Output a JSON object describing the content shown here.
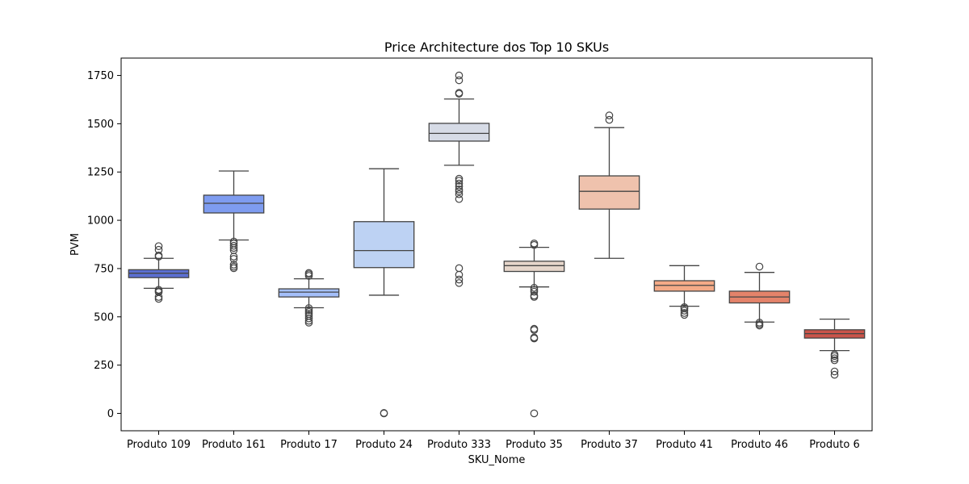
{
  "chart_data": {
    "type": "box",
    "title": "Price Architecture dos Top 10 SKUs",
    "xlabel": "SKU_Nome",
    "ylabel": "PVM",
    "ylim": [
      -90,
      1840
    ],
    "yticks": [
      0,
      250,
      500,
      750,
      1000,
      1250,
      1500,
      1750
    ],
    "grid": false,
    "categories": [
      "Produto 109",
      "Produto 161",
      "Produto 17",
      "Produto 24",
      "Produto 333",
      "Produto 35",
      "Produto 37",
      "Produto 41",
      "Produto 46",
      "Produto 6"
    ],
    "boxes": [
      {
        "category": "Produto 109",
        "color": "#5b6fd1",
        "whisker_low": 648,
        "q1": 703,
        "median": 726,
        "q3": 744,
        "whisker_high": 803,
        "outliers": [
          593,
          603,
          628,
          633,
          640,
          812,
          818,
          847,
          866
        ]
      },
      {
        "category": "Produto 161",
        "color": "#7e9cf0",
        "whisker_low": 898,
        "q1": 1038,
        "median": 1088,
        "q3": 1130,
        "whisker_high": 1255,
        "outliers": [
          752,
          760,
          770,
          800,
          812,
          845,
          857,
          868,
          880,
          890
        ]
      },
      {
        "category": "Produto 17",
        "color": "#a4bffa",
        "whisker_low": 547,
        "q1": 603,
        "median": 628,
        "q3": 645,
        "whisker_high": 697,
        "outliers": [
          470,
          480,
          492,
          505,
          515,
          525,
          535,
          545,
          712,
          720,
          727
        ]
      },
      {
        "category": "Produto 24",
        "color": "#bdd2f3",
        "whisker_low": 612,
        "q1": 755,
        "median": 843,
        "q3": 993,
        "whisker_high": 1267,
        "outliers": [
          0,
          2
        ]
      },
      {
        "category": "Produto 333",
        "color": "#d6dbe6",
        "whisker_low": 1285,
        "q1": 1410,
        "median": 1450,
        "q3": 1502,
        "whisker_high": 1628,
        "outliers": [
          675,
          693,
          718,
          752,
          1110,
          1135,
          1150,
          1160,
          1175,
          1190,
          1205,
          1215,
          1655,
          1660,
          1725,
          1750
        ]
      },
      {
        "category": "Produto 35",
        "color": "#e6d6cb",
        "whisker_low": 655,
        "q1": 735,
        "median": 765,
        "q3": 788,
        "whisker_high": 860,
        "outliers": [
          0,
          388,
          393,
          432,
          438,
          603,
          610,
          630,
          640,
          650,
          872,
          880
        ]
      },
      {
        "category": "Produto 37",
        "color": "#efc2ad",
        "whisker_low": 803,
        "q1": 1058,
        "median": 1150,
        "q3": 1230,
        "whisker_high": 1480,
        "outliers": [
          1520,
          1543
        ]
      },
      {
        "category": "Produto 41",
        "color": "#f4aa87",
        "whisker_low": 555,
        "q1": 633,
        "median": 663,
        "q3": 687,
        "whisker_high": 765,
        "outliers": [
          510,
          520,
          532,
          543,
          550
        ]
      },
      {
        "category": "Produto 46",
        "color": "#e4836a",
        "whisker_low": 473,
        "q1": 572,
        "median": 603,
        "q3": 633,
        "whisker_high": 730,
        "outliers": [
          455,
          462,
          470,
          760
        ]
      },
      {
        "category": "Produto 6",
        "color": "#c9544a",
        "whisker_low": 325,
        "q1": 390,
        "median": 413,
        "q3": 433,
        "whisker_high": 488,
        "outliers": [
          200,
          217,
          275,
          285,
          297,
          305
        ]
      }
    ]
  }
}
